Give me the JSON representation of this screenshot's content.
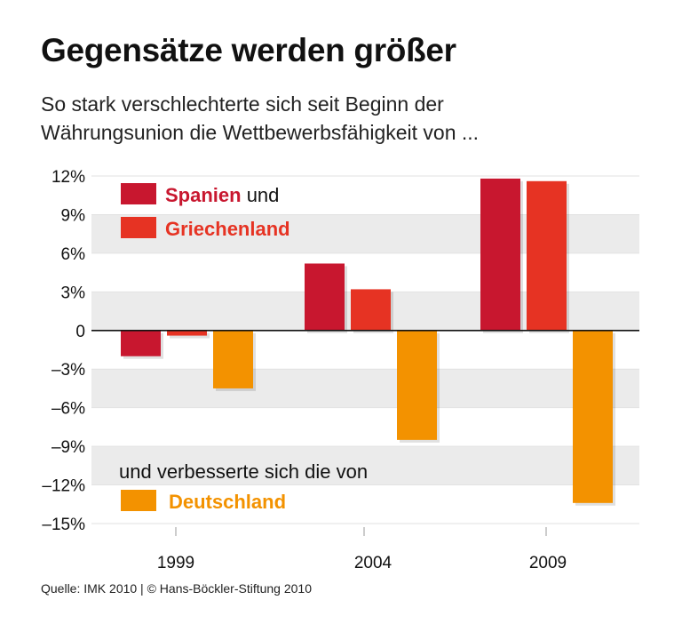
{
  "title": "Gegensätze werden größer",
  "subtitle_lines": [
    "So stark verschlechterte sich seit Beginn der",
    "Währungsunion die Wettbewerbsfähigkeit von ..."
  ],
  "source": "Quelle: IMK 2010 | © Hans-Böckler-Stiftung 2010",
  "chart_data": {
    "type": "bar",
    "categories": [
      "1999",
      "2004",
      "2009"
    ],
    "ylim": [
      -15,
      12
    ],
    "yticks": [
      12,
      9,
      6,
      3,
      0,
      -3,
      -6,
      -9,
      -12,
      -15
    ],
    "ytick_labels": [
      "12%",
      "9%",
      "6%",
      "3%",
      "0",
      "–3%",
      "–6%",
      "–9%",
      "–12%",
      "–15%"
    ],
    "grid": "alternating bands",
    "series": [
      {
        "name": "Spanien",
        "color": "#c8172f",
        "values": [
          -2.0,
          5.2,
          11.8
        ]
      },
      {
        "name": "Griechenland",
        "color": "#e63323",
        "values": [
          -0.4,
          3.2,
          11.6
        ]
      },
      {
        "name": "Deutschland",
        "color": "#f39200",
        "values": [
          -4.5,
          -8.5,
          -13.4
        ]
      }
    ],
    "legend": {
      "spanien_suffix": " und",
      "deutschland_intro": "und verbesserte sich die von"
    }
  }
}
